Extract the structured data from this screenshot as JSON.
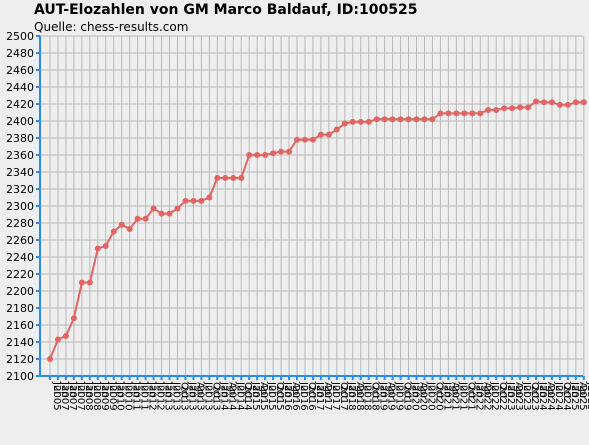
{
  "title": "AUT-Elozahlen von GM Marco Baldauf, ID:100525",
  "subtitle": "Quelle: chess-results.com",
  "colors": {
    "line": "#e06666",
    "axis": "#2a8cf0",
    "grid": "#b9b9b9",
    "background": "#eeeeee"
  },
  "chart_data": {
    "type": "line",
    "title": "AUT-Elozahlen von GM Marco Baldauf, ID:100525",
    "subtitle": "Quelle: chess-results.com",
    "xlabel": "",
    "ylabel": "",
    "ylim": [
      2100,
      2500
    ],
    "y_ticks": [
      2100,
      2120,
      2140,
      2160,
      2180,
      2200,
      2220,
      2240,
      2260,
      2280,
      2300,
      2320,
      2340,
      2360,
      2380,
      2400,
      2420,
      2440,
      2460,
      2480,
      2500
    ],
    "x_tick_labels": [
      "Jul 2005",
      "Jan 2007",
      "Jan 2007",
      "Jul 2007",
      "Jan 2008",
      "Jul 2008",
      "Jan 2009",
      "Jul 2009",
      "Jan 2010",
      "Jul 2010",
      "Jan 2011",
      "Jul 2011",
      "Jan 2012",
      "Jul 2012",
      "Jan 2013",
      "Jul 2013",
      "Oct 2013",
      "Jan 2013",
      "Apr 2013",
      "Jul 2013",
      "Oct 2013",
      "Jan 2014",
      "Apr 2014",
      "Jul 2014",
      "Oct 2014",
      "Jan 2015",
      "Apr 2015",
      "Jul 2015",
      "Oct 2015",
      "Jan 2016",
      "Apr 2016",
      "Jul 2016",
      "Oct 2016",
      "Jan 2017",
      "Apr 2017",
      "Jul 2017",
      "Oct 2017",
      "Jan 2018",
      "Apr 2018",
      "Jul 2018",
      "Oct 2018",
      "Jan 2019",
      "Apr 2019",
      "Jul 2019",
      "Oct 2019",
      "Jan 2020",
      "Apr 2020",
      "Jul 2020",
      "Oct 2020",
      "Jan 2021",
      "Apr 2021",
      "Jul 2021",
      "Oct 2021",
      "Jan 2022",
      "Apr 2022",
      "Jul 2022",
      "Oct 2022",
      "Jan 2023",
      "Apr 2023",
      "Jul 2023",
      "Oct 2023",
      "Jan 2024",
      "Apr 2024",
      "Jul 2024",
      "Oct 2024",
      "Jan 2025",
      "Apr 2025",
      "Jul 2025"
    ],
    "series": [
      {
        "values": [
          2120,
          2143,
          2147,
          2168,
          2210,
          2210,
          2250,
          2253,
          2270,
          2278,
          2273,
          2285,
          2285,
          2297,
          2291,
          2291,
          2297,
          2306,
          2306,
          2306,
          2310,
          2333,
          2333,
          2333,
          2333,
          2360,
          2360,
          2360,
          2362,
          2364,
          2364,
          2378,
          2378,
          2378,
          2384,
          2384,
          2390,
          2397,
          2399,
          2399,
          2399,
          2402,
          2402,
          2402,
          2402,
          2402,
          2402,
          2402,
          2402,
          2409,
          2409,
          2409,
          2409,
          2409,
          2409,
          2413,
          2413,
          2415,
          2415,
          2416,
          2416,
          2423,
          2422,
          2422,
          2419,
          2419,
          2422,
          2422
        ]
      }
    ],
    "grid": true,
    "legend": "none"
  }
}
